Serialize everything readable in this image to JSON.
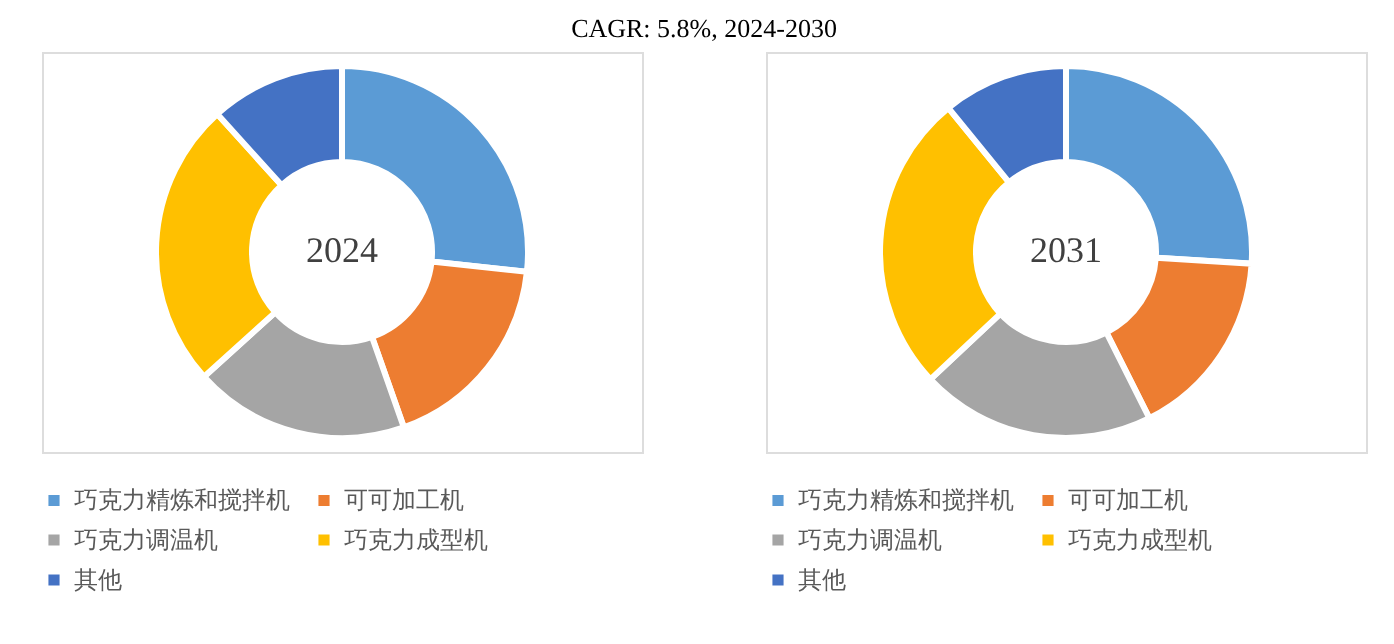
{
  "chart_data": [
    {
      "type": "donut",
      "title": "2024",
      "annotations": [
        "CAGR:    5.8%, 2024-2030"
      ],
      "legend": "bottom",
      "categories": [
        "巧克力精炼和搅拌机",
        "可可加工机",
        "巧克力调温机",
        "巧克力成型机",
        "其他"
      ],
      "values": [
        26.7,
        17.9,
        18.7,
        25.0,
        11.7
      ],
      "colors": [
        "#5b9bd5",
        "#ed7d31",
        "#a5a5a5",
        "#ffc000",
        "#4472c4"
      ]
    },
    {
      "type": "donut",
      "title": "2031",
      "legend": "bottom",
      "categories": [
        "巧克力精炼和搅拌机",
        "可可加工机",
        "巧克力调温机",
        "巧克力成型机",
        "其他"
      ],
      "values": [
        26.0,
        16.6,
        20.4,
        26.1,
        10.9
      ],
      "colors": [
        "#5b9bd5",
        "#ed7d31",
        "#a5a5a5",
        "#ffc000",
        "#4472c4"
      ]
    }
  ]
}
